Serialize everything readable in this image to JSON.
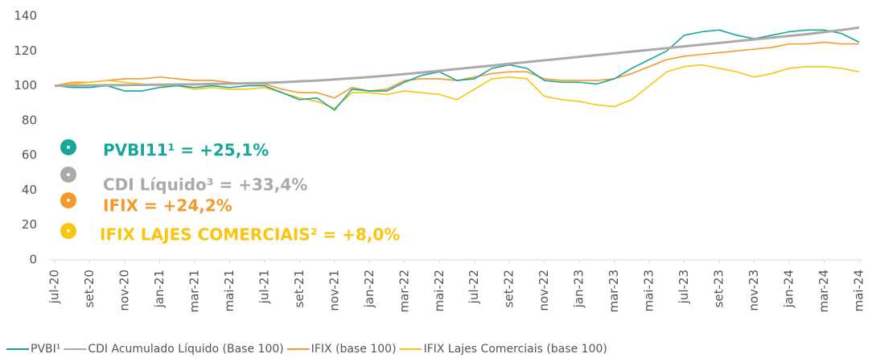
{
  "chart_data": {
    "type": "line",
    "categories": [
      "jul-20",
      null,
      "set-20",
      null,
      "nov-20",
      null,
      "jan-21",
      null,
      "mar-21",
      null,
      "mai-21",
      null,
      "jul-21",
      null,
      "set-21",
      null,
      "nov-21",
      null,
      "jan-22",
      null,
      "mar-22",
      null,
      "mai-22",
      null,
      "jul-22",
      null,
      "set-22",
      null,
      "nov-22",
      null,
      "jan-23",
      null,
      "mar-23",
      null,
      "mai-23",
      null,
      "jul-23",
      null,
      "set-23",
      null,
      "nov-23",
      null,
      "jan-24",
      null,
      "mar-24",
      null,
      "mai-24"
    ],
    "series": [
      {
        "name": "PVBI¹",
        "color": "#17a89a",
        "values": [
          100,
          99,
          99,
          100,
          97,
          97,
          99,
          100,
          99,
          100,
          99,
          100,
          100,
          96,
          92,
          93,
          86,
          98,
          97,
          97,
          102,
          106,
          108,
          103,
          104,
          110,
          112,
          110,
          103,
          102,
          102,
          101,
          104,
          110,
          115,
          120,
          129,
          131,
          132,
          129,
          127,
          129,
          131,
          132,
          132,
          130,
          125
        ]
      },
      {
        "name": "CDI Acumulado Líquido (Base 100)",
        "color": "#aaaaaa",
        "values": [
          100,
          100.1,
          100.2,
          100.3,
          100.4,
          100.5,
          100.6,
          100.7,
          100.8,
          101,
          101.2,
          101.4,
          101.6,
          102,
          102.5,
          103,
          103.6,
          104.3,
          105,
          105.8,
          106.7,
          107.6,
          108.6,
          109.6,
          110.6,
          111.6,
          112.6,
          113.6,
          114.6,
          115.6,
          116.6,
          117.6,
          118.6,
          119.6,
          120.6,
          121.6,
          122.6,
          123.6,
          124.6,
          125.6,
          126.6,
          127.6,
          128.6,
          129.6,
          130.8,
          132,
          133.4
        ]
      },
      {
        "name": "IFIX (base 100)",
        "color": "#f39a2b",
        "values": [
          100,
          102,
          102,
          103,
          104,
          104,
          105,
          104,
          103,
          103,
          102,
          101,
          101,
          98,
          96,
          96,
          93,
          99,
          97,
          98,
          103,
          104,
          104,
          103,
          105,
          107,
          108,
          108,
          104,
          103,
          103,
          103,
          104,
          107,
          111,
          115,
          117,
          118,
          119,
          120,
          121,
          122,
          124,
          124,
          125,
          124,
          124
        ]
      },
      {
        "name": "IFIX Lajes Comerciais (base 100)",
        "color": "#fbc40e",
        "values": [
          100,
          101,
          102,
          103,
          102,
          101,
          100,
          100,
          98,
          99,
          98,
          98,
          99,
          96,
          93,
          91,
          87,
          96,
          96,
          95,
          97,
          96,
          95,
          92,
          98,
          104,
          105,
          104,
          94,
          92,
          91,
          89,
          88,
          92,
          100,
          108,
          111,
          112,
          110,
          108,
          105,
          107,
          110,
          111,
          111,
          110,
          108
        ]
      }
    ],
    "annotations": [
      "PVBI11¹ = +25,1%",
      "CDI Líquido³ = +33,4%",
      "IFIX = +24,2%",
      "IFIX LAJES COMERCIAIS² = +8,0%"
    ],
    "ylim": [
      0,
      140
    ],
    "yticks": [
      0,
      20,
      40,
      60,
      80,
      100,
      120,
      140
    ],
    "grid": false,
    "legend": "bottom"
  }
}
